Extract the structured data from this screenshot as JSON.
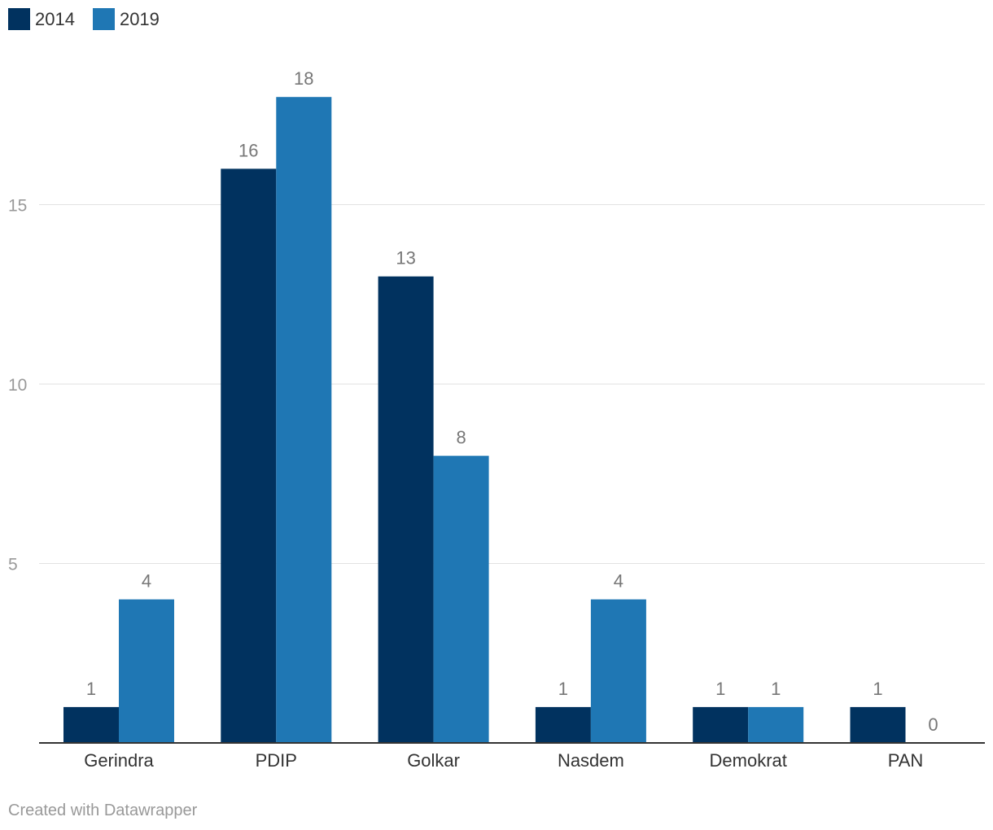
{
  "chart_data": {
    "type": "bar",
    "categories": [
      "Gerindra",
      "PDIP",
      "Golkar",
      "Nasdem",
      "Demokrat",
      "PAN"
    ],
    "series": [
      {
        "name": "2014",
        "values": [
          1,
          16,
          13,
          1,
          1,
          1
        ],
        "color": "#01325f"
      },
      {
        "name": "2019",
        "values": [
          4,
          18,
          8,
          4,
          1,
          0
        ],
        "color": "#1f77b4"
      }
    ],
    "y_ticks": [
      5,
      10,
      15
    ],
    "ylim": [
      0,
      18.5
    ],
    "grid": true,
    "legend_position": "top-left"
  },
  "credit": "Created with Datawrapper"
}
